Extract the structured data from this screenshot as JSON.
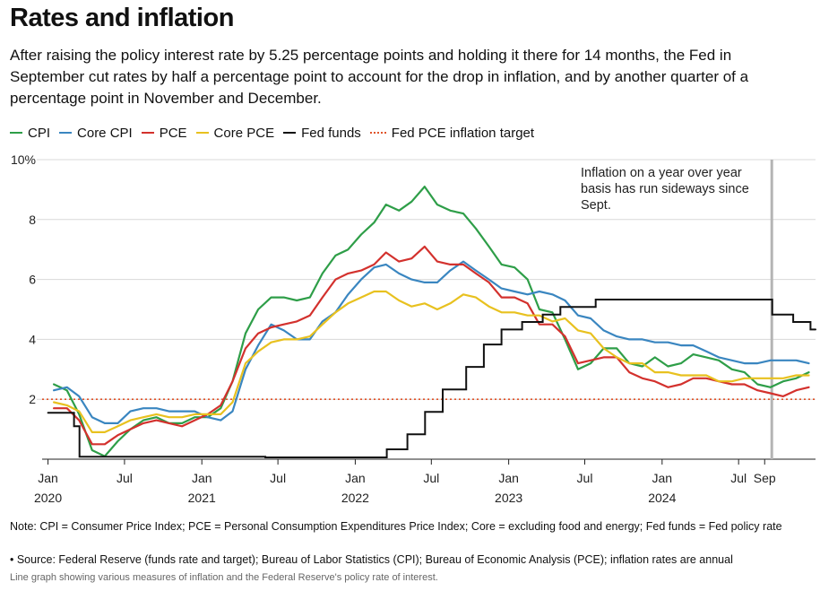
{
  "title": "Rates and inflation",
  "subtitle": "After raising the policy interest rate by 5.25 percentage points and holding it there for 14 months, the Fed in September cut rates by half a percentage point to account for the drop in inflation, and by another quarter of a percentage point in November and December.",
  "legend": [
    {
      "label": "CPI",
      "color": "#2e9e48",
      "style": "solid"
    },
    {
      "label": "Core CPI",
      "color": "#3a86c0",
      "style": "solid"
    },
    {
      "label": "PCE",
      "color": "#d3312d",
      "style": "solid"
    },
    {
      "label": "Core PCE",
      "color": "#e8c11f",
      "style": "solid"
    },
    {
      "label": "Fed funds",
      "color": "#111111",
      "style": "solid"
    },
    {
      "label": "Fed PCE inflation target",
      "color": "#e0542a",
      "style": "dotted"
    }
  ],
  "annotation": {
    "lines": [
      "Inflation on a year over year",
      "basis has run sideways since",
      "Sept."
    ],
    "marker_date": "2024-09-18"
  },
  "note": "Note: CPI = Consumer Price Index; PCE = Personal Consumption Expenditures Price Index; Core = excluding food and energy; Fed funds = Fed policy rate",
  "source": "• Source: Federal Reserve (funds rate and target); Bureau of Labor Statistics (CPI); Bureau of Economic Analysis (PCE); inflation rates are annual",
  "alt_text": "Line graph showing various measures of inflation and the Federal Reserve's policy rate of interest.",
  "chart_data": {
    "type": "line",
    "title": "Rates and inflation",
    "xlabel": "",
    "ylabel": "",
    "x_range": [
      "2020-01",
      "2024-12"
    ],
    "ylim": [
      0,
      10
    ],
    "y_ticks": [
      {
        "value": 10,
        "label": "10%"
      },
      {
        "value": 8,
        "label": "8"
      },
      {
        "value": 6,
        "label": "6"
      },
      {
        "value": 4,
        "label": "4"
      },
      {
        "value": 2,
        "label": "2"
      }
    ],
    "x_ticks": [
      {
        "date": "2020-01",
        "label": "Jan",
        "year": "2020"
      },
      {
        "date": "2020-07",
        "label": "Jul",
        "year": ""
      },
      {
        "date": "2021-01",
        "label": "Jan",
        "year": "2021"
      },
      {
        "date": "2021-07",
        "label": "Jul",
        "year": ""
      },
      {
        "date": "2022-01",
        "label": "Jan",
        "year": "2022"
      },
      {
        "date": "2022-07",
        "label": "Jul",
        "year": ""
      },
      {
        "date": "2023-01",
        "label": "Jan",
        "year": "2023"
      },
      {
        "date": "2023-07",
        "label": "Jul",
        "year": ""
      },
      {
        "date": "2024-01",
        "label": "Jan",
        "year": "2024"
      },
      {
        "date": "2024-07",
        "label": "Jul",
        "year": ""
      },
      {
        "date": "2024-09",
        "label": "Sep",
        "year": ""
      }
    ],
    "grid": "horizontal",
    "legend_position": "top",
    "target_line": {
      "name": "Fed PCE inflation target",
      "value": 2,
      "color": "#e0542a"
    },
    "series": [
      {
        "name": "CPI",
        "color": "#2e9e48",
        "start": "2020-01",
        "values": [
          2.5,
          2.3,
          1.5,
          0.3,
          0.1,
          0.6,
          1.0,
          1.3,
          1.4,
          1.2,
          1.2,
          1.4,
          1.4,
          1.7,
          2.6,
          4.2,
          5.0,
          5.4,
          5.4,
          5.3,
          5.4,
          6.2,
          6.8,
          7.0,
          7.5,
          7.9,
          8.5,
          8.3,
          8.6,
          9.1,
          8.5,
          8.3,
          8.2,
          7.7,
          7.1,
          6.5,
          6.4,
          6.0,
          5.0,
          4.9,
          4.0,
          3.0,
          3.2,
          3.7,
          3.7,
          3.2,
          3.1,
          3.4,
          3.1,
          3.2,
          3.5,
          3.4,
          3.3,
          3.0,
          2.9,
          2.5,
          2.4,
          2.6,
          2.7,
          2.9
        ]
      },
      {
        "name": "Core CPI",
        "color": "#3a86c0",
        "start": "2020-01",
        "values": [
          2.3,
          2.4,
          2.1,
          1.4,
          1.2,
          1.2,
          1.6,
          1.7,
          1.7,
          1.6,
          1.6,
          1.6,
          1.4,
          1.3,
          1.6,
          3.0,
          3.8,
          4.5,
          4.3,
          4.0,
          4.0,
          4.6,
          4.9,
          5.5,
          6.0,
          6.4,
          6.5,
          6.2,
          6.0,
          5.9,
          5.9,
          6.3,
          6.6,
          6.3,
          6.0,
          5.7,
          5.6,
          5.5,
          5.6,
          5.5,
          5.3,
          4.8,
          4.7,
          4.3,
          4.1,
          4.0,
          4.0,
          3.9,
          3.9,
          3.8,
          3.8,
          3.6,
          3.4,
          3.3,
          3.2,
          3.2,
          3.3,
          3.3,
          3.3,
          3.2
        ]
      },
      {
        "name": "PCE",
        "color": "#d3312d",
        "start": "2020-01",
        "values": [
          1.7,
          1.7,
          1.3,
          0.5,
          0.5,
          0.8,
          1.0,
          1.2,
          1.3,
          1.2,
          1.1,
          1.3,
          1.5,
          1.8,
          2.6,
          3.7,
          4.2,
          4.4,
          4.5,
          4.6,
          4.8,
          5.4,
          6.0,
          6.2,
          6.3,
          6.5,
          6.9,
          6.6,
          6.7,
          7.1,
          6.6,
          6.5,
          6.5,
          6.2,
          5.9,
          5.4,
          5.4,
          5.2,
          4.5,
          4.5,
          4.1,
          3.2,
          3.3,
          3.4,
          3.4,
          2.9,
          2.7,
          2.6,
          2.4,
          2.5,
          2.7,
          2.7,
          2.6,
          2.5,
          2.5,
          2.3,
          2.2,
          2.1,
          2.3,
          2.4
        ]
      },
      {
        "name": "Core PCE",
        "color": "#e8c11f",
        "start": "2020-01",
        "values": [
          1.9,
          1.8,
          1.6,
          0.9,
          0.9,
          1.1,
          1.3,
          1.4,
          1.5,
          1.4,
          1.4,
          1.5,
          1.5,
          1.5,
          1.9,
          3.2,
          3.6,
          3.9,
          4.0,
          4.0,
          4.1,
          4.5,
          4.9,
          5.2,
          5.4,
          5.6,
          5.6,
          5.3,
          5.1,
          5.2,
          5.0,
          5.2,
          5.5,
          5.4,
          5.1,
          4.9,
          4.9,
          4.8,
          4.8,
          4.6,
          4.7,
          4.3,
          4.2,
          3.7,
          3.4,
          3.2,
          3.2,
          2.9,
          2.9,
          2.8,
          2.8,
          2.8,
          2.6,
          2.6,
          2.7,
          2.7,
          2.7,
          2.7,
          2.8,
          2.8
        ]
      },
      {
        "name": "Fed funds",
        "color": "#111111",
        "step": true,
        "end": "2024-12-31",
        "points": [
          [
            "2020-01-01",
            1.55
          ],
          [
            "2020-03-03",
            1.1
          ],
          [
            "2020-03-16",
            0.08
          ],
          [
            "2021-06-01",
            0.06
          ],
          [
            "2022-03-17",
            0.33
          ],
          [
            "2022-05-05",
            0.83
          ],
          [
            "2022-06-16",
            1.58
          ],
          [
            "2022-07-28",
            2.33
          ],
          [
            "2022-09-22",
            3.08
          ],
          [
            "2022-11-03",
            3.83
          ],
          [
            "2022-12-15",
            4.33
          ],
          [
            "2023-02-02",
            4.58
          ],
          [
            "2023-03-23",
            4.83
          ],
          [
            "2023-05-04",
            5.08
          ],
          [
            "2023-07-27",
            5.33
          ],
          [
            "2024-09-19",
            4.83
          ],
          [
            "2024-11-08",
            4.58
          ],
          [
            "2024-12-19",
            4.33
          ]
        ]
      }
    ]
  }
}
